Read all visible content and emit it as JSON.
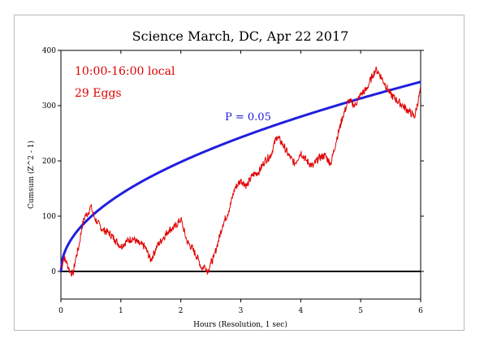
{
  "chart_data": {
    "type": "line",
    "title": "Science March, DC, Apr 22 2017",
    "xlabel": "Hours (Resolution, 1 sec)",
    "ylabel": "Cumsum (Z^2 - 1)",
    "xlim": [
      0,
      6
    ],
    "ylim": [
      -50,
      400
    ],
    "x_ticks": [
      "0",
      "1",
      "2",
      "3",
      "4",
      "5",
      "6"
    ],
    "y_ticks": [
      "0",
      "100",
      "200",
      "300",
      "400"
    ],
    "annotations": {
      "time_window": "10:00-16:00 local",
      "eggs": "29 Eggs",
      "probability": "P = 0.05"
    },
    "colors": {
      "cumsum": "#e00000",
      "probability": "#1f1fe0",
      "baseline": "#000000"
    },
    "probability_curve": {
      "model": "sqrt",
      "value_at_end": 343
    },
    "series": [
      {
        "x": [
          0,
          0.05,
          0.1,
          0.15,
          0.2,
          0.25,
          0.3,
          0.35,
          0.4,
          0.45,
          0.5,
          0.55,
          0.6,
          0.7,
          0.8,
          0.9,
          1.0,
          1.1,
          1.2,
          1.3,
          1.4,
          1.5,
          1.6,
          1.7,
          1.8,
          1.9,
          2.0,
          2.1,
          2.2,
          2.3,
          2.35,
          2.4,
          2.45,
          2.5,
          2.55,
          2.6,
          2.7,
          2.8,
          2.9,
          3.0,
          3.1,
          3.2,
          3.3,
          3.4,
          3.5,
          3.6,
          3.7,
          3.8,
          3.9,
          4.0,
          4.1,
          4.2,
          4.3,
          4.4,
          4.5,
          4.6,
          4.7,
          4.8,
          4.9,
          5.0,
          5.1,
          5.2,
          5.25,
          5.3,
          5.4,
          5.5,
          5.6,
          5.7,
          5.8,
          5.9,
          6.0
        ],
        "y": [
          5,
          25,
          15,
          0,
          -5,
          25,
          45,
          80,
          100,
          105,
          118,
          100,
          90,
          75,
          70,
          58,
          45,
          55,
          60,
          50,
          45,
          20,
          45,
          60,
          75,
          80,
          95,
          55,
          40,
          20,
          5,
          10,
          0,
          15,
          25,
          45,
          85,
          110,
          150,
          165,
          155,
          175,
          180,
          200,
          210,
          245,
          230,
          210,
          195,
          215,
          200,
          190,
          205,
          210,
          195,
          240,
          280,
          310,
          300,
          320,
          330,
          355,
          365,
          360,
          340,
          320,
          310,
          300,
          290,
          280,
          330
        ]
      }
    ]
  }
}
